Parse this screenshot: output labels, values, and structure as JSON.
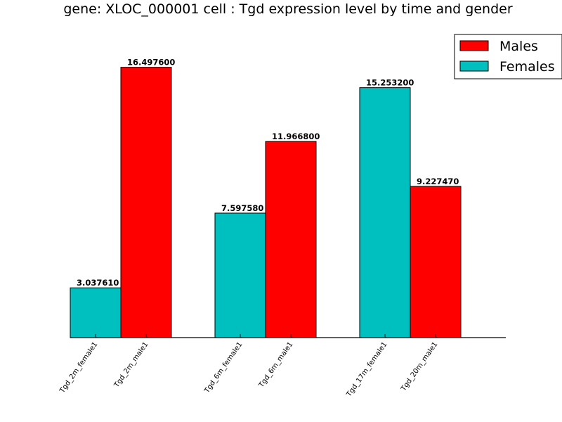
{
  "chart_data": {
    "type": "bar",
    "title": "gene: XLOC_000001 cell : Tgd expression level by time and gender",
    "xlabel": "",
    "ylabel": "",
    "ylim": [
      0,
      18.8
    ],
    "grid": false,
    "legend_position": "top-right",
    "categories": [
      "Tgd_2m_female1",
      "Tgd_2m_male1",
      "Tgd_6m_female1",
      "Tgd_6m_male1",
      "Tgd_17m_female1",
      "Tgd_20m_male1"
    ],
    "bars": [
      {
        "category": "Tgd_2m_female1",
        "series": "Females",
        "value": 3.03761,
        "label": "3.037610"
      },
      {
        "category": "Tgd_2m_male1",
        "series": "Males",
        "value": 16.4976,
        "label": "16.497600"
      },
      {
        "category": "Tgd_6m_female1",
        "series": "Females",
        "value": 7.59758,
        "label": "7.597580"
      },
      {
        "category": "Tgd_6m_male1",
        "series": "Males",
        "value": 11.9668,
        "label": "11.966800"
      },
      {
        "category": "Tgd_17m_female1",
        "series": "Females",
        "value": 15.2532,
        "label": "15.253200"
      },
      {
        "category": "Tgd_20m_male1",
        "series": "Males",
        "value": 9.22747,
        "label": "9.227470"
      }
    ],
    "series": [
      {
        "name": "Males",
        "color": "#ff0000"
      },
      {
        "name": "Females",
        "color": "#00bfbf"
      }
    ]
  }
}
